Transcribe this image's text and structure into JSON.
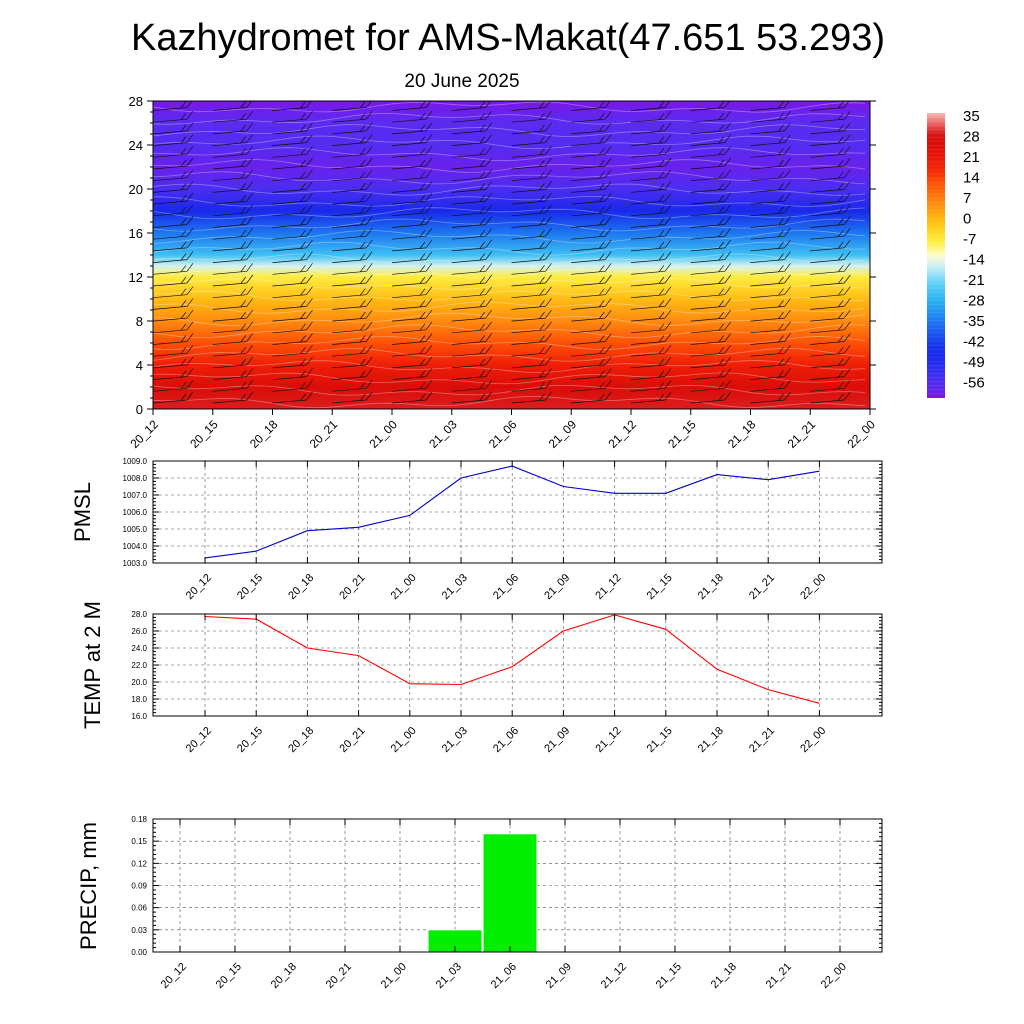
{
  "header": {
    "title": "Kazhydromet for AMS-Makat(47.651 53.293)",
    "date": "20 June 2025"
  },
  "times": [
    "20_12",
    "20_15",
    "20_18",
    "20_21",
    "21_00",
    "21_03",
    "21_06",
    "21_09",
    "21_12",
    "21_15",
    "21_18",
    "21_21",
    "22_00"
  ],
  "colorbar": {
    "labels": [
      "35",
      "28",
      "21",
      "14",
      "7",
      "0",
      "-7",
      "-14",
      "-21",
      "-28",
      "-35",
      "-42",
      "-49",
      "-56"
    ]
  },
  "chart_data": [
    {
      "type": "heatmap",
      "ylim": [
        0,
        28
      ],
      "yticks": [
        0,
        4,
        8,
        12,
        16,
        20,
        24,
        28
      ],
      "temperature_profile_by_height": {
        "height": [
          0,
          2,
          4,
          6,
          8,
          10,
          12,
          13,
          14,
          16,
          18,
          20,
          22,
          24,
          26,
          28
        ],
        "value": [
          31,
          28,
          21,
          14,
          7,
          1,
          -6,
          -14,
          -24,
          -34,
          -45,
          -54,
          -58,
          -55,
          -56,
          -60
        ]
      },
      "colorbar_range": [
        -60,
        38
      ],
      "wind_barbs": true
    },
    {
      "type": "line",
      "ylabel": "PMSL",
      "ylim": [
        1003,
        1009
      ],
      "yticks": [
        "1003.0",
        "1004.0",
        "1005.0",
        "1006.0",
        "1007.0",
        "1008.0",
        "1009.0"
      ],
      "values": [
        1003.3,
        1003.7,
        1004.9,
        1005.1,
        1005.8,
        1008.0,
        1008.7,
        1007.5,
        1007.1,
        1007.1,
        1008.2,
        1007.9,
        1008.4
      ],
      "color": "#0000cc"
    },
    {
      "type": "line",
      "ylabel": "TEMP at 2 M",
      "ylim": [
        16,
        28
      ],
      "yticks": [
        "16.0",
        "18.0",
        "20.0",
        "22.0",
        "24.0",
        "26.0",
        "28.0"
      ],
      "values": [
        27.7,
        27.4,
        24.0,
        23.1,
        19.8,
        19.7,
        21.8,
        26.0,
        27.9,
        26.2,
        21.5,
        19.1,
        17.5
      ],
      "color": "#ff0000"
    },
    {
      "type": "bar",
      "ylabel": "PRECIP, mm",
      "ylim": [
        0,
        0.18
      ],
      "yticks": [
        "0.00",
        "0.03",
        "0.06",
        "0.09",
        "0.12",
        "0.15",
        "0.18"
      ],
      "values": [
        0,
        0,
        0,
        0,
        0,
        0.03,
        0.16,
        0,
        0,
        0,
        0,
        0,
        0
      ],
      "color": "#00ee00"
    }
  ]
}
